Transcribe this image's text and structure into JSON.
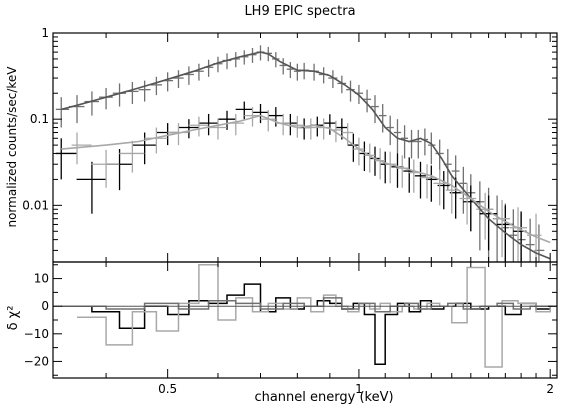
{
  "chart_data": {
    "type": "scatter",
    "title": "LH9 EPIC spectra",
    "xlabel": "channel energy (keV)",
    "x_scale": "log",
    "xlim": [
      0.33,
      2.05
    ],
    "x_ticks": [
      0.5,
      1,
      2
    ],
    "x_tick_labels": [
      "0.5",
      "1",
      "2"
    ],
    "colors": {
      "pn": "#707070",
      "mos1": "#000000",
      "mos2": "#a8a8a8",
      "model": "#555555"
    },
    "panels": [
      {
        "name": "spectrum",
        "ylabel": "normalized counts/sec/keV",
        "y_scale": "log",
        "ylim": [
          0.0022,
          1.0
        ],
        "y_ticks": [
          0.01,
          0.1,
          1
        ],
        "y_tick_labels": [
          "0.01",
          "0.1",
          "1"
        ],
        "series": [
          {
            "key": "pn",
            "style": "crosses",
            "x": [
              0.34,
              0.36,
              0.38,
              0.4,
              0.42,
              0.44,
              0.46,
              0.48,
              0.5,
              0.52,
              0.54,
              0.56,
              0.58,
              0.6,
              0.62,
              0.64,
              0.66,
              0.68,
              0.7,
              0.72,
              0.74,
              0.76,
              0.78,
              0.8,
              0.82,
              0.85,
              0.88,
              0.91,
              0.94,
              0.97,
              1.0,
              1.03,
              1.06,
              1.09,
              1.12,
              1.15,
              1.18,
              1.21,
              1.24,
              1.27,
              1.3,
              1.34,
              1.38,
              1.42,
              1.46,
              1.5,
              1.55,
              1.6,
              1.65,
              1.7,
              1.75,
              1.8,
              1.86,
              1.92
            ],
            "y": [
              0.13,
              0.14,
              0.16,
              0.18,
              0.2,
              0.21,
              0.22,
              0.25,
              0.28,
              0.3,
              0.33,
              0.36,
              0.4,
              0.44,
              0.48,
              0.5,
              0.53,
              0.56,
              0.6,
              0.58,
              0.5,
              0.42,
              0.38,
              0.36,
              0.37,
              0.36,
              0.33,
              0.3,
              0.26,
              0.22,
              0.2,
              0.17,
              0.14,
              0.11,
              0.08,
              0.07,
              0.06,
              0.055,
              0.055,
              0.058,
              0.05,
              0.04,
              0.03,
              0.025,
              0.018,
              0.014,
              0.011,
              0.009,
              0.007,
              0.0055,
              0.0045,
              0.004,
              0.0035,
              0.003
            ],
            "yerr": [
              0.05,
              0.05,
              0.05,
              0.05,
              0.06,
              0.06,
              0.06,
              0.06,
              0.07,
              0.07,
              0.08,
              0.08,
              0.09,
              0.09,
              0.1,
              0.1,
              0.1,
              0.11,
              0.12,
              0.11,
              0.1,
              0.09,
              0.08,
              0.08,
              0.08,
              0.08,
              0.07,
              0.07,
              0.06,
              0.06,
              0.05,
              0.05,
              0.05,
              0.04,
              0.03,
              0.03,
              0.025,
              0.02,
              0.02,
              0.02,
              0.02,
              0.018,
              0.015,
              0.013,
              0.01,
              0.009,
              0.008,
              0.007,
              0.006,
              0.005,
              0.0045,
              0.004,
              0.0035,
              0.003
            ]
          },
          {
            "key": "mos1",
            "style": "crosses",
            "x": [
              0.34,
              0.38,
              0.42,
              0.46,
              0.5,
              0.54,
              0.58,
              0.62,
              0.66,
              0.7,
              0.74,
              0.78,
              0.82,
              0.86,
              0.9,
              0.94,
              0.98,
              1.02,
              1.06,
              1.1,
              1.15,
              1.2,
              1.25,
              1.3,
              1.36,
              1.42,
              1.5,
              1.6,
              1.7,
              1.8
            ],
            "y": [
              0.04,
              0.02,
              0.03,
              0.05,
              0.07,
              0.08,
              0.09,
              0.1,
              0.13,
              0.12,
              0.11,
              0.09,
              0.08,
              0.085,
              0.09,
              0.08,
              0.05,
              0.04,
              0.035,
              0.03,
              0.028,
              0.025,
              0.022,
              0.02,
              0.017,
              0.014,
              0.011,
              0.008,
              0.006,
              0.005
            ],
            "yerr": [
              0.02,
              0.012,
              0.015,
              0.02,
              0.02,
              0.02,
              0.025,
              0.025,
              0.03,
              0.03,
              0.028,
              0.025,
              0.022,
              0.022,
              0.024,
              0.022,
              0.018,
              0.015,
              0.013,
              0.012,
              0.012,
              0.011,
              0.01,
              0.009,
              0.008,
              0.007,
              0.006,
              0.005,
              0.004,
              0.0035
            ]
          },
          {
            "key": "mos2",
            "style": "crosses",
            "x": [
              0.36,
              0.4,
              0.44,
              0.48,
              0.52,
              0.56,
              0.6,
              0.64,
              0.68,
              0.72,
              0.76,
              0.8,
              0.84,
              0.88,
              0.92,
              0.96,
              1.0,
              1.04,
              1.08,
              1.12,
              1.17,
              1.22,
              1.28,
              1.34,
              1.4,
              1.48,
              1.58,
              1.68,
              1.78,
              1.9
            ],
            "y": [
              0.05,
              0.03,
              0.04,
              0.06,
              0.07,
              0.085,
              0.08,
              0.09,
              0.11,
              0.1,
              0.09,
              0.085,
              0.08,
              0.08,
              0.075,
              0.07,
              0.045,
              0.038,
              0.033,
              0.03,
              0.027,
              0.024,
              0.021,
              0.018,
              0.015,
              0.012,
              0.009,
              0.007,
              0.0055,
              0.0045
            ],
            "yerr": [
              0.02,
              0.014,
              0.016,
              0.02,
              0.02,
              0.022,
              0.022,
              0.025,
              0.028,
              0.028,
              0.025,
              0.024,
              0.022,
              0.022,
              0.021,
              0.02,
              0.016,
              0.014,
              0.013,
              0.012,
              0.011,
              0.01,
              0.009,
              0.008,
              0.007,
              0.006,
              0.005,
              0.0045,
              0.004,
              0.0035
            ]
          },
          {
            "key": "model",
            "style": "line",
            "x": [
              0.34,
              0.36,
              0.4,
              0.45,
              0.5,
              0.55,
              0.6,
              0.65,
              0.7,
              0.72,
              0.75,
              0.8,
              0.85,
              0.9,
              0.95,
              1.0,
              1.05,
              1.1,
              1.15,
              1.2,
              1.25,
              1.3,
              1.35,
              1.4,
              1.5,
              1.6,
              1.7,
              1.8,
              1.9,
              2.0
            ],
            "y": [
              0.13,
              0.145,
              0.18,
              0.23,
              0.29,
              0.36,
              0.45,
              0.53,
              0.6,
              0.57,
              0.47,
              0.37,
              0.36,
              0.32,
              0.25,
              0.19,
              0.13,
              0.08,
              0.06,
              0.055,
              0.06,
              0.052,
              0.035,
              0.022,
              0.012,
              0.007,
              0.0048,
              0.0035,
              0.0028,
              0.0024
            ]
          },
          {
            "key": "mos_model",
            "style": "line",
            "x": [
              0.34,
              0.4,
              0.45,
              0.5,
              0.55,
              0.6,
              0.65,
              0.7,
              0.75,
              0.8,
              0.85,
              0.9,
              0.95,
              1.0,
              1.05,
              1.1,
              1.2,
              1.3,
              1.4,
              1.5,
              1.6,
              1.7,
              1.8,
              1.9,
              2.0
            ],
            "y": [
              0.045,
              0.05,
              0.055,
              0.065,
              0.075,
              0.085,
              0.095,
              0.11,
              0.09,
              0.08,
              0.085,
              0.078,
              0.06,
              0.045,
              0.036,
              0.031,
              0.026,
              0.022,
              0.017,
              0.012,
              0.0085,
              0.0065,
              0.0052,
              0.0043,
              0.0037
            ]
          }
        ]
      },
      {
        "name": "residuals",
        "ylabel": "δ χ²",
        "y_scale": "linear",
        "ylim": [
          -26,
          16
        ],
        "y_ticks": [
          -20,
          -10,
          0,
          10
        ],
        "y_tick_labels": [
          "−20",
          "−10",
          "0",
          "10"
        ],
        "series": [
          {
            "key": "mos1",
            "style": "steps",
            "x": [
              0.34,
              0.38,
              0.42,
              0.46,
              0.5,
              0.54,
              0.58,
              0.62,
              0.66,
              0.7,
              0.74,
              0.78,
              0.82,
              0.86,
              0.9,
              0.94,
              0.98,
              1.02,
              1.06,
              1.1,
              1.15,
              1.2,
              1.25,
              1.3,
              1.36,
              1.42,
              1.5,
              1.6,
              1.7,
              1.8,
              1.9,
              2.0
            ],
            "y": [
              0,
              -2,
              -8,
              0,
              -3,
              2,
              1,
              4,
              8,
              -2,
              3,
              -1,
              0,
              2,
              1,
              -1,
              1,
              -3,
              -21,
              -3,
              1,
              -2,
              2,
              -1,
              0,
              1,
              -1,
              0,
              -3,
              1,
              -1,
              0
            ]
          },
          {
            "key": "mos2",
            "style": "steps",
            "x": [
              0.36,
              0.4,
              0.44,
              0.48,
              0.52,
              0.56,
              0.6,
              0.64,
              0.68,
              0.72,
              0.76,
              0.8,
              0.84,
              0.88,
              0.92,
              0.96,
              1.0,
              1.04,
              1.08,
              1.12,
              1.17,
              1.22,
              1.28,
              1.34,
              1.4,
              1.48,
              1.58,
              1.68,
              1.78,
              1.9,
              2.0
            ],
            "y": [
              -4,
              -14,
              -2,
              -9,
              1,
              15,
              -5,
              3,
              -2,
              1,
              -1,
              3,
              -2,
              4,
              0,
              -2,
              1,
              -1,
              1,
              -2,
              0,
              -1,
              1,
              0,
              -6,
              14,
              -22,
              2,
              1,
              -2,
              0
            ]
          },
          {
            "key": "pn",
            "style": "steps",
            "x": [
              0.34,
              0.4,
              0.46,
              0.52,
              0.58,
              0.64,
              0.7,
              0.76,
              0.82,
              0.88,
              0.94,
              1.0,
              1.06,
              1.12,
              1.18,
              1.24,
              1.3,
              1.38,
              1.46,
              1.55,
              1.65,
              1.75,
              1.86,
              1.96
            ],
            "y": [
              0,
              -1,
              1,
              -1,
              2,
              1,
              -1,
              1,
              0,
              3,
              -1,
              1,
              -2,
              0,
              1,
              -1,
              0,
              1,
              -1,
              0,
              1,
              -1,
              0,
              0
            ]
          }
        ]
      }
    ]
  }
}
